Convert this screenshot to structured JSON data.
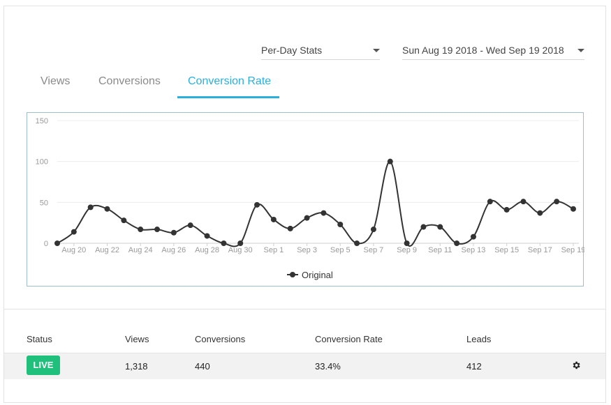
{
  "filters": {
    "stats_mode": "Per-Day Stats",
    "date_range": "Sun Aug 19 2018 - Wed Sep 19 2018"
  },
  "tabs": [
    {
      "label": "Views",
      "active": false
    },
    {
      "label": "Conversions",
      "active": false
    },
    {
      "label": "Conversion Rate",
      "active": true
    }
  ],
  "colors": {
    "accent": "#29b0dd",
    "live_badge": "#1fbf7c",
    "line": "#333333"
  },
  "chart_data": {
    "type": "line",
    "x": [
      "Aug 19",
      "Aug 20",
      "Aug 21",
      "Aug 22",
      "Aug 23",
      "Aug 24",
      "Aug 25",
      "Aug 26",
      "Aug 27",
      "Aug 28",
      "Aug 29",
      "Aug 30",
      "Aug 31",
      "Sep 1",
      "Sep 2",
      "Sep 3",
      "Sep 4",
      "Sep 5",
      "Sep 6",
      "Sep 7",
      "Sep 8",
      "Sep 9",
      "Sep 10",
      "Sep 11",
      "Sep 12",
      "Sep 13",
      "Sep 14",
      "Sep 15",
      "Sep 16",
      "Sep 17",
      "Sep 18",
      "Sep 19"
    ],
    "x_tick_labels": [
      "Aug 20",
      "Aug 22",
      "Aug 24",
      "Aug 26",
      "Aug 28",
      "Aug 30",
      "Sep 1",
      "Sep 3",
      "Sep 5",
      "Sep 7",
      "Sep 9",
      "Sep 11",
      "Sep 13",
      "Sep 15",
      "Sep 17",
      "Sep 19"
    ],
    "series": [
      {
        "name": "Original",
        "values": [
          0,
          14,
          44,
          42,
          28,
          17,
          17,
          13,
          22,
          9,
          0,
          0,
          47,
          29,
          18,
          31,
          37,
          23,
          0,
          17,
          100,
          0,
          20,
          20,
          0,
          8,
          51,
          41,
          51,
          37,
          51,
          42
        ]
      }
    ],
    "ylim": [
      0,
      150
    ],
    "y_ticks": [
      0,
      50,
      100,
      150
    ],
    "grid": true,
    "legend": "bottom"
  },
  "table": {
    "headers": {
      "status": "Status",
      "views": "Views",
      "conversions": "Conversions",
      "conversion_rate": "Conversion Rate",
      "leads": "Leads"
    },
    "row": {
      "status": "LIVE",
      "views": "1,318",
      "conversions": "440",
      "conversion_rate": "33.4%",
      "leads": "412"
    }
  }
}
